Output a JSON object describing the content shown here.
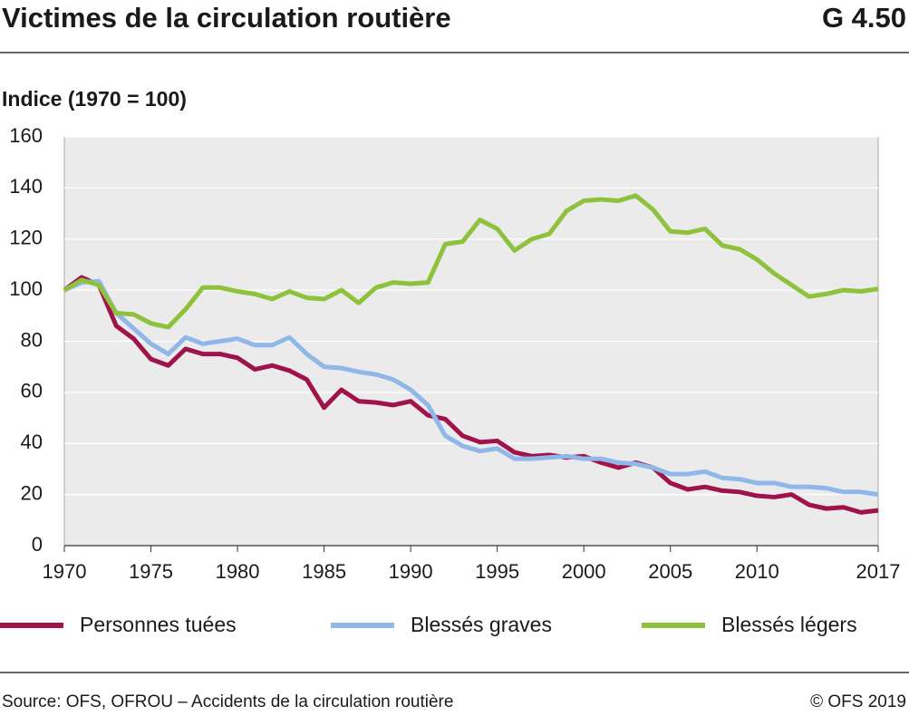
{
  "chart_data": {
    "type": "line",
    "title": "Victimes de la circulation routière",
    "figure_number": "G 4.50",
    "y_label": "Indice (1970 = 100)",
    "source": "Source: OFS, OFROU – Accidents de la circulation routière",
    "copyright": "© OFS 2019",
    "x": [
      1970,
      1971,
      1972,
      1973,
      1974,
      1975,
      1976,
      1977,
      1978,
      1979,
      1980,
      1981,
      1982,
      1983,
      1984,
      1985,
      1986,
      1987,
      1988,
      1989,
      1990,
      1991,
      1992,
      1993,
      1994,
      1995,
      1996,
      1997,
      1998,
      1999,
      2000,
      2001,
      2002,
      2003,
      2004,
      2005,
      2006,
      2007,
      2008,
      2009,
      2010,
      2011,
      2012,
      2013,
      2014,
      2015,
      2016,
      2017
    ],
    "series": [
      {
        "name": "Personnes tuées",
        "color": "#a0124a",
        "values": [
          100,
          105,
          102,
          86,
          81,
          73,
          70.5,
          77,
          75,
          75,
          73.5,
          69,
          70.5,
          68.5,
          65,
          54,
          61,
          56.5,
          56,
          55,
          56.5,
          51,
          49.5,
          43,
          40.5,
          41,
          36.5,
          35,
          35.5,
          34.5,
          35,
          32.5,
          30.5,
          32.5,
          30.5,
          24.5,
          22,
          23,
          21.5,
          21,
          19.5,
          19,
          20,
          16,
          14.5,
          15,
          13,
          13.8
        ]
      },
      {
        "name": "Blessés graves",
        "color": "#8fb8e8",
        "values": [
          100,
          103,
          103.5,
          91,
          85,
          79,
          75,
          81.5,
          79,
          80,
          81,
          78.5,
          78.5,
          81.5,
          75,
          70,
          69.5,
          68,
          67,
          65,
          61,
          55,
          43,
          39,
          37,
          38,
          34,
          34,
          34.5,
          35,
          34,
          34,
          32.5,
          32,
          30.5,
          28,
          28,
          29,
          26.5,
          26,
          24.5,
          24.5,
          23,
          23,
          22.5,
          21,
          21,
          20
        ]
      },
      {
        "name": "Blessés légers",
        "color": "#8fc23c",
        "values": [
          100,
          104,
          102,
          91,
          90.5,
          87,
          85.5,
          92.5,
          101,
          101,
          99.5,
          98.5,
          96.5,
          99.5,
          97,
          96.5,
          100,
          95,
          101,
          103,
          102.5,
          103,
          118,
          119,
          127.5,
          124,
          115.5,
          120,
          122,
          131,
          135,
          135.5,
          135,
          137,
          131.5,
          123,
          122.5,
          124,
          117.5,
          116,
          112,
          106.5,
          102,
          97.5,
          98.5,
          100,
          99.5,
          100.5
        ]
      }
    ],
    "xlim": [
      1970,
      2017
    ],
    "xticks": [
      1970,
      1975,
      1980,
      1985,
      1990,
      1995,
      2000,
      2005,
      2010,
      2017
    ],
    "ylim": [
      0,
      160
    ],
    "yticks": [
      0,
      20,
      40,
      60,
      80,
      100,
      120,
      140,
      160
    ],
    "grid": true
  }
}
